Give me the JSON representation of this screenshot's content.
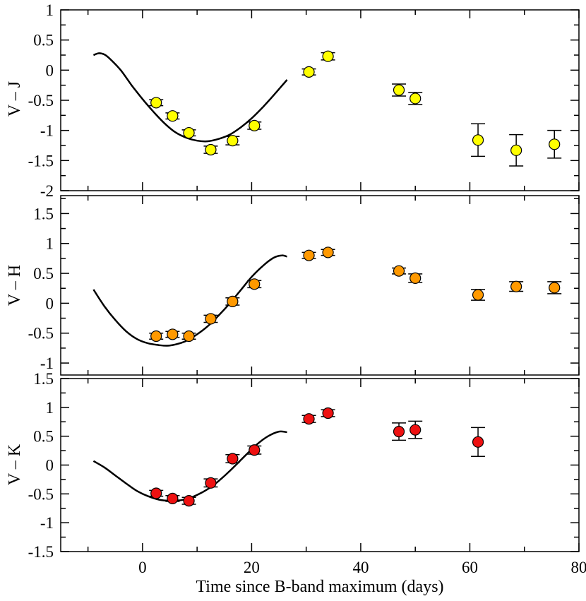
{
  "chart_data": [
    {
      "type": "scatter",
      "ylabel": "V – J",
      "xlim": [
        -15,
        80
      ],
      "ylim": [
        -2,
        1
      ],
      "yticks": [
        -2,
        -1.5,
        -1,
        -0.5,
        0,
        0.5,
        1
      ],
      "ytick_labels": [
        "-2",
        "-1.5",
        "-1",
        "-0.5",
        "0",
        "0.5",
        "1"
      ],
      "marker_color": "#ffff00",
      "points": [
        {
          "x": 2.5,
          "y": -0.54,
          "err": 0.05
        },
        {
          "x": 5.5,
          "y": -0.76,
          "err": 0.05
        },
        {
          "x": 8.5,
          "y": -1.04,
          "err": 0.05
        },
        {
          "x": 12.5,
          "y": -1.32,
          "err": 0.06
        },
        {
          "x": 16.5,
          "y": -1.17,
          "err": 0.07
        },
        {
          "x": 20.5,
          "y": -0.92,
          "err": 0.06
        },
        {
          "x": 30.5,
          "y": -0.03,
          "err": 0.05
        },
        {
          "x": 34.0,
          "y": 0.23,
          "err": 0.06
        },
        {
          "x": 47.0,
          "y": -0.33,
          "err": 0.1
        },
        {
          "x": 50.0,
          "y": -0.47,
          "err": 0.1
        },
        {
          "x": 61.5,
          "y": -1.16,
          "err": 0.27
        },
        {
          "x": 68.5,
          "y": -1.33,
          "err": 0.26
        },
        {
          "x": 75.5,
          "y": -1.23,
          "err": 0.23
        }
      ],
      "model_curve": {
        "x": [
          -9,
          -8,
          -7,
          -6,
          -4,
          -2,
          0,
          2,
          4,
          6,
          8,
          10,
          12,
          14,
          16,
          18,
          20,
          22,
          24,
          26.5
        ],
        "y": [
          0.25,
          0.28,
          0.26,
          0.19,
          0.0,
          -0.25,
          -0.48,
          -0.69,
          -0.88,
          -1.03,
          -1.12,
          -1.17,
          -1.18,
          -1.14,
          -1.07,
          -0.95,
          -0.8,
          -0.62,
          -0.42,
          -0.16
        ]
      }
    },
    {
      "type": "scatter",
      "ylabel": "V – H",
      "xlim": [
        -15,
        80
      ],
      "ylim": [
        -1.2,
        1.8
      ],
      "yticks": [
        -1,
        -0.5,
        0,
        0.5,
        1,
        1.5
      ],
      "ytick_labels": [
        "-1",
        "-0.5",
        "0",
        "0.5",
        "1",
        "1.5"
      ],
      "marker_color": "#ff9900",
      "points": [
        {
          "x": 2.5,
          "y": -0.55,
          "err": 0.05
        },
        {
          "x": 5.5,
          "y": -0.52,
          "err": 0.05
        },
        {
          "x": 8.5,
          "y": -0.55,
          "err": 0.05
        },
        {
          "x": 12.5,
          "y": -0.26,
          "err": 0.06
        },
        {
          "x": 16.5,
          "y": 0.03,
          "err": 0.06
        },
        {
          "x": 20.5,
          "y": 0.32,
          "err": 0.06
        },
        {
          "x": 30.5,
          "y": 0.8,
          "err": 0.05
        },
        {
          "x": 34.0,
          "y": 0.85,
          "err": 0.05
        },
        {
          "x": 47.0,
          "y": 0.54,
          "err": 0.05
        },
        {
          "x": 50.0,
          "y": 0.42,
          "err": 0.07
        },
        {
          "x": 61.5,
          "y": 0.14,
          "err": 0.09
        },
        {
          "x": 68.5,
          "y": 0.28,
          "err": 0.08
        },
        {
          "x": 75.5,
          "y": 0.26,
          "err": 0.1
        }
      ],
      "model_curve": {
        "x": [
          -9,
          -7,
          -5,
          -3,
          -1,
          1,
          3,
          4.5,
          6,
          8,
          10,
          12,
          14,
          16,
          18,
          20,
          22,
          24,
          25.5,
          26.5
        ],
        "y": [
          0.23,
          -0.05,
          -0.28,
          -0.47,
          -0.6,
          -0.67,
          -0.7,
          -0.71,
          -0.69,
          -0.63,
          -0.52,
          -0.38,
          -0.2,
          0.0,
          0.22,
          0.44,
          0.62,
          0.76,
          0.8,
          0.78
        ]
      }
    },
    {
      "type": "scatter",
      "ylabel": "V – K",
      "xlabel": "Time since B-band maximum (days)",
      "xlim": [
        -15,
        80
      ],
      "ylim": [
        -1.5,
        1.5
      ],
      "xticks": [
        0,
        20,
        40,
        60,
        80
      ],
      "xtick_labels": [
        "0",
        "20",
        "40",
        "60",
        "80"
      ],
      "yticks": [
        -1.5,
        -1,
        -0.5,
        0,
        0.5,
        1,
        1.5
      ],
      "ytick_labels": [
        "-1.5",
        "-1",
        "-0.5",
        "0",
        "0.5",
        "1",
        "1.5"
      ],
      "marker_color": "#ee1111",
      "points": [
        {
          "x": 2.5,
          "y": -0.49,
          "err": 0.05
        },
        {
          "x": 5.5,
          "y": -0.58,
          "err": 0.05
        },
        {
          "x": 8.5,
          "y": -0.62,
          "err": 0.06
        },
        {
          "x": 12.5,
          "y": -0.31,
          "err": 0.07
        },
        {
          "x": 16.5,
          "y": 0.11,
          "err": 0.07
        },
        {
          "x": 20.5,
          "y": 0.26,
          "err": 0.07
        },
        {
          "x": 30.5,
          "y": 0.8,
          "err": 0.06
        },
        {
          "x": 34.0,
          "y": 0.9,
          "err": 0.06
        },
        {
          "x": 47.0,
          "y": 0.58,
          "err": 0.15
        },
        {
          "x": 50.0,
          "y": 0.61,
          "err": 0.15
        },
        {
          "x": 61.5,
          "y": 0.4,
          "err": 0.25
        }
      ],
      "model_curve": {
        "x": [
          -9,
          -7,
          -5,
          -3,
          -1,
          1,
          3,
          5,
          7,
          9,
          11,
          13,
          15,
          17,
          19,
          21,
          23,
          25,
          26.5
        ],
        "y": [
          0.07,
          -0.04,
          -0.18,
          -0.32,
          -0.45,
          -0.54,
          -0.6,
          -0.62,
          -0.61,
          -0.56,
          -0.47,
          -0.35,
          -0.19,
          -0.01,
          0.18,
          0.36,
          0.5,
          0.58,
          0.57
        ]
      }
    }
  ]
}
